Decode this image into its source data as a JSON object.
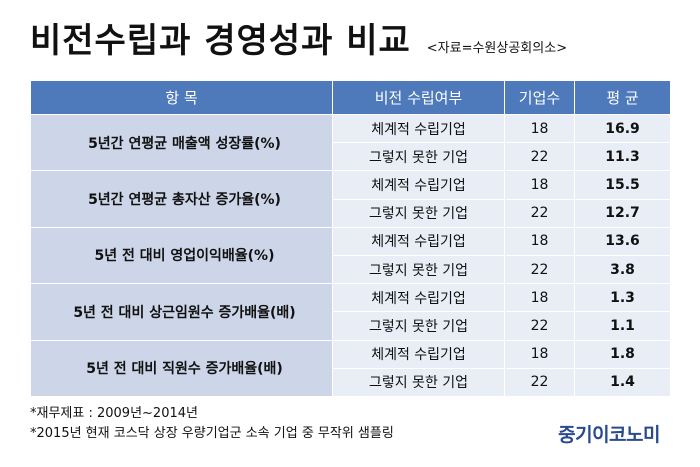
{
  "title": "비전수립과 경영성과 비교",
  "source": "<자료=수원상공회의소>",
  "table": {
    "headers": [
      "항  목",
      "비전 수립여부",
      "기업수",
      "평  균"
    ],
    "groups": [
      {
        "item": "5년간 연평균 매출액 성장률(%)",
        "rows": [
          {
            "method": "체계적 수립기업",
            "count": "18",
            "avg": "16.9"
          },
          {
            "method": "그렇지 못한 기업",
            "count": "22",
            "avg": "11.3"
          }
        ]
      },
      {
        "item": "5년간 연평균 총자산 증가율(%)",
        "rows": [
          {
            "method": "체계적 수립기업",
            "count": "18",
            "avg": "15.5"
          },
          {
            "method": "그렇지 못한 기업",
            "count": "22",
            "avg": "12.7"
          }
        ]
      },
      {
        "item": "5년 전 대비 영업이익배율(%)",
        "rows": [
          {
            "method": "체계적 수립기업",
            "count": "18",
            "avg": "13.6"
          },
          {
            "method": "그렇지 못한 기업",
            "count": "22",
            "avg": "3.8"
          }
        ]
      },
      {
        "item": "5년 전 대비 상근임원수 증가배율(배)",
        "rows": [
          {
            "method": "체계적 수립기업",
            "count": "18",
            "avg": "1.3"
          },
          {
            "method": "그렇지 못한 기업",
            "count": "22",
            "avg": "1.1"
          }
        ]
      },
      {
        "item": "5년 전 대비 직원수 증가배율(배)",
        "rows": [
          {
            "method": "체계적 수립기업",
            "count": "18",
            "avg": "1.8"
          },
          {
            "method": "그렇지 못한 기업",
            "count": "22",
            "avg": "1.4"
          }
        ]
      }
    ]
  },
  "notes": [
    "*재무제표 : 2009년~2014년",
    "*2015년 현재 코스닥 상장 우량기업군 소속 기업 중 무작위 샘플링"
  ],
  "logo": "중기이코노미",
  "colors": {
    "header_bg": "#4e79bb",
    "item_bg": "#cdd6e8",
    "cell_bg": "#e8edf6",
    "logo": "#2a4a8e"
  }
}
